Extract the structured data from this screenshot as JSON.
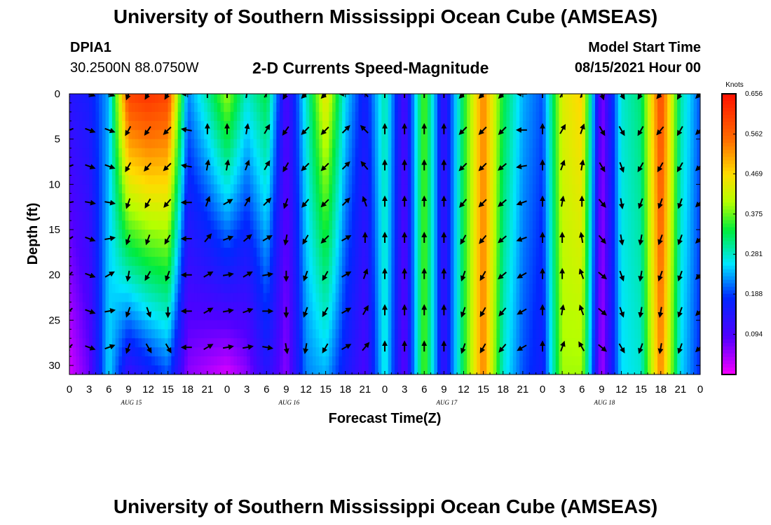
{
  "header": {
    "title_top": "University of Southern Mississippi Ocean Cube (AMSEAS)",
    "title_bottom": "University of Southern Mississippi Ocean Cube (AMSEAS)",
    "station": "DPIA1",
    "coords": "30.2500N  88.0750W",
    "plot_title": "2-D Currents Speed-Magnitude",
    "model_label": "Model Start Time",
    "model_time": "08/15/2021 Hour 00"
  },
  "colorbar": {
    "unit": "Knots",
    "ticks": [
      "0.656",
      "0.562",
      "0.469",
      "0.375",
      "0.281",
      "0.188",
      "0.094"
    ]
  },
  "chart_data": {
    "type": "heatmap",
    "title": "2-D Currents Speed-Magnitude",
    "xlabel": "Forecast Time(Z)",
    "ylabel": "Depth (ft)",
    "x_tick_labels": [
      "0",
      "3",
      "6",
      "9",
      "12",
      "15",
      "18",
      "21",
      "0",
      "3",
      "6",
      "9",
      "12",
      "15",
      "18",
      "21",
      "0",
      "3",
      "6",
      "9",
      "12",
      "15",
      "18",
      "21",
      "0",
      "3",
      "6",
      "9",
      "12",
      "15",
      "18",
      "21",
      "0"
    ],
    "x_hours": [
      0,
      3,
      6,
      9,
      12,
      15,
      18,
      21,
      24,
      27,
      30,
      33,
      36,
      39,
      42,
      45,
      48,
      51,
      54,
      57,
      60,
      63,
      66,
      69,
      72,
      75,
      78,
      81,
      84,
      87,
      90,
      93,
      96
    ],
    "day_labels": [
      {
        "label": "AUG 15",
        "hour": 9
      },
      {
        "label": "AUG 16",
        "hour": 33
      },
      {
        "label": "AUG 17",
        "hour": 57
      },
      {
        "label": "AUG 18",
        "hour": 81
      }
    ],
    "y_ticks": [
      0,
      5,
      10,
      15,
      20,
      25,
      30
    ],
    "ylim": [
      31,
      0
    ],
    "xlim": [
      0,
      96
    ],
    "speed_range_knots": [
      0,
      0.656
    ],
    "columns": [
      {
        "hour": 0,
        "surface": 0.14,
        "bottom": 0.02
      },
      {
        "hour": 3,
        "surface": 0.16,
        "bottom": 0.08
      },
      {
        "hour": 6,
        "surface": 0.24,
        "bottom": 0.26
      },
      {
        "hour": 9,
        "surface": 0.6,
        "bottom": 0.12
      },
      {
        "hour": 12,
        "surface": 0.62,
        "bottom": 0.16
      },
      {
        "hour": 15,
        "surface": 0.6,
        "bottom": 0.2
      },
      {
        "hour": 18,
        "surface": 0.22,
        "bottom": 0.06
      },
      {
        "hour": 21,
        "surface": 0.3,
        "bottom": 0.04
      },
      {
        "hour": 24,
        "surface": 0.4,
        "bottom": 0.02
      },
      {
        "hour": 27,
        "surface": 0.28,
        "bottom": 0.06
      },
      {
        "hour": 30,
        "surface": 0.34,
        "bottom": 0.14
      },
      {
        "hour": 33,
        "surface": 0.1,
        "bottom": 0.06
      },
      {
        "hour": 36,
        "surface": 0.28,
        "bottom": 0.22
      },
      {
        "hour": 39,
        "surface": 0.46,
        "bottom": 0.24
      },
      {
        "hour": 42,
        "surface": 0.26,
        "bottom": 0.16
      },
      {
        "hour": 45,
        "surface": 0.16,
        "bottom": 0.1
      },
      {
        "hour": 48,
        "surface": 0.3,
        "bottom": 0.28
      },
      {
        "hour": 51,
        "surface": 0.1,
        "bottom": 0.08
      },
      {
        "hour": 54,
        "surface": 0.38,
        "bottom": 0.38
      },
      {
        "hour": 57,
        "surface": 0.12,
        "bottom": 0.12
      },
      {
        "hour": 60,
        "surface": 0.34,
        "bottom": 0.34
      },
      {
        "hour": 63,
        "surface": 0.54,
        "bottom": 0.54
      },
      {
        "hour": 66,
        "surface": 0.34,
        "bottom": 0.28
      },
      {
        "hour": 69,
        "surface": 0.24,
        "bottom": 0.2
      },
      {
        "hour": 72,
        "surface": 0.2,
        "bottom": 0.16
      },
      {
        "hour": 75,
        "surface": 0.44,
        "bottom": 0.4
      },
      {
        "hour": 78,
        "surface": 0.48,
        "bottom": 0.4
      },
      {
        "hour": 81,
        "surface": 0.06,
        "bottom": 0.04
      },
      {
        "hour": 84,
        "surface": 0.28,
        "bottom": 0.26
      },
      {
        "hour": 87,
        "surface": 0.32,
        "bottom": 0.28
      },
      {
        "hour": 90,
        "surface": 0.6,
        "bottom": 0.54
      },
      {
        "hour": 93,
        "surface": 0.3,
        "bottom": 0.26
      },
      {
        "hour": 96,
        "surface": 0.2,
        "bottom": 0.18
      }
    ],
    "vector_depths_ft": [
      0,
      4,
      8,
      12,
      16,
      20,
      24,
      28
    ],
    "vector_directions_deg": [
      {
        "hour": 0,
        "dirs": [
          225,
          250,
          250,
          260,
          240,
          225,
          225,
          225
        ]
      },
      {
        "hour": 3,
        "dirs": [
          110,
          110,
          110,
          100,
          110,
          110,
          110,
          110
        ]
      },
      {
        "hour": 6,
        "dirs": [
          110,
          110,
          110,
          100,
          80,
          60,
          80,
          70
        ]
      },
      {
        "hour": 9,
        "dirs": [
          200,
          210,
          210,
          200,
          200,
          190,
          200,
          200
        ]
      },
      {
        "hour": 12,
        "dirs": [
          210,
          215,
          220,
          210,
          200,
          210,
          160,
          150
        ]
      },
      {
        "hour": 15,
        "dirs": [
          210,
          225,
          225,
          220,
          210,
          200,
          180,
          150
        ]
      },
      {
        "hour": 18,
        "dirs": [
          270,
          280,
          280,
          270,
          270,
          270,
          270,
          270
        ]
      },
      {
        "hour": 21,
        "dirs": [
          0,
          0,
          10,
          20,
          40,
          60,
          60,
          60
        ]
      },
      {
        "hour": 24,
        "dirs": [
          0,
          0,
          10,
          60,
          70,
          80,
          80,
          80
        ]
      },
      {
        "hour": 27,
        "dirs": [
          10,
          10,
          20,
          30,
          50,
          60,
          70,
          80
        ]
      },
      {
        "hour": 30,
        "dirs": [
          30,
          30,
          30,
          45,
          60,
          80,
          90,
          100
        ]
      },
      {
        "hour": 33,
        "dirs": [
          210,
          215,
          210,
          200,
          190,
          180,
          180,
          170
        ]
      },
      {
        "hour": 36,
        "dirs": [
          225,
          225,
          225,
          220,
          210,
          200,
          200,
          190
        ]
      },
      {
        "hour": 39,
        "dirs": [
          225,
          225,
          225,
          225,
          225,
          210,
          210,
          210
        ]
      },
      {
        "hour": 42,
        "dirs": [
          270,
          45,
          45,
          45,
          60,
          60,
          60,
          60
        ]
      },
      {
        "hour": 45,
        "dirs": [
          315,
          315,
          320,
          340,
          0,
          20,
          30,
          40
        ]
      },
      {
        "hour": 48,
        "dirs": [
          0,
          0,
          0,
          0,
          0,
          0,
          0,
          0
        ]
      },
      {
        "hour": 51,
        "dirs": [
          0,
          0,
          0,
          0,
          0,
          0,
          0,
          0
        ]
      },
      {
        "hour": 54,
        "dirs": [
          0,
          0,
          0,
          0,
          0,
          0,
          0,
          0
        ]
      },
      {
        "hour": 57,
        "dirs": [
          0,
          0,
          0,
          0,
          0,
          0,
          0,
          0
        ]
      },
      {
        "hour": 60,
        "dirs": [
          225,
          225,
          225,
          220,
          210,
          200,
          200,
          200
        ]
      },
      {
        "hour": 63,
        "dirs": [
          225,
          225,
          225,
          225,
          220,
          210,
          210,
          210
        ]
      },
      {
        "hour": 66,
        "dirs": [
          225,
          225,
          230,
          230,
          230,
          230,
          220,
          220
        ]
      },
      {
        "hour": 69,
        "dirs": [
          270,
          270,
          260,
          250,
          250,
          240,
          240,
          240
        ]
      },
      {
        "hour": 72,
        "dirs": [
          0,
          0,
          0,
          0,
          0,
          0,
          0,
          0
        ]
      },
      {
        "hour": 75,
        "dirs": [
          30,
          30,
          20,
          10,
          0,
          0,
          10,
          20
        ]
      },
      {
        "hour": 78,
        "dirs": [
          20,
          20,
          10,
          0,
          350,
          340,
          340,
          330
        ]
      },
      {
        "hour": 81,
        "dirs": [
          160,
          150,
          150,
          140,
          140,
          130,
          130,
          130
        ]
      },
      {
        "hour": 84,
        "dirs": [
          150,
          150,
          160,
          170,
          170,
          160,
          160,
          150
        ]
      },
      {
        "hour": 87,
        "dirs": [
          210,
          210,
          210,
          200,
          190,
          190,
          190,
          200
        ]
      },
      {
        "hour": 90,
        "dirs": [
          220,
          220,
          210,
          200,
          200,
          200,
          190,
          190
        ]
      },
      {
        "hour": 93,
        "dirs": [
          210,
          210,
          210,
          200,
          200,
          200,
          200,
          200
        ]
      },
      {
        "hour": 96,
        "dirs": [
          225,
          225,
          225,
          225,
          225,
          225,
          225,
          225
        ]
      }
    ]
  }
}
